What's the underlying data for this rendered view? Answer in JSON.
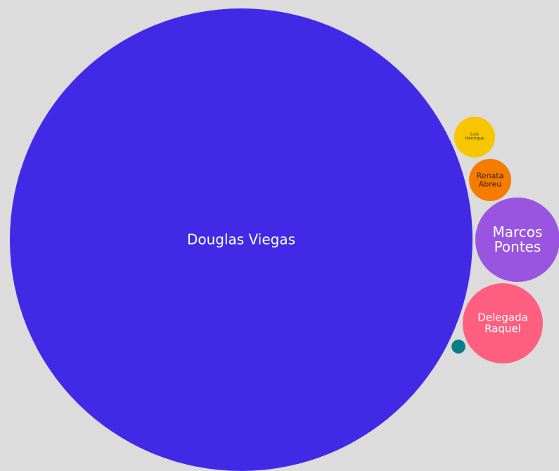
{
  "chart_data": {
    "type": "bubble",
    "categories": [
      "Douglas Viegas",
      "Luis Henrique",
      "Renata Abreu",
      "Marcos Pontes",
      "Delegada Raquel",
      null
    ],
    "values": [
      1000,
      7.8,
      8.3,
      33.3,
      30,
      0.9
    ],
    "colors": [
      "#4229e6",
      "#f7c600",
      "#f57c00",
      "#9a55e0",
      "#ff5f7e",
      "#0a7c86"
    ]
  }
}
